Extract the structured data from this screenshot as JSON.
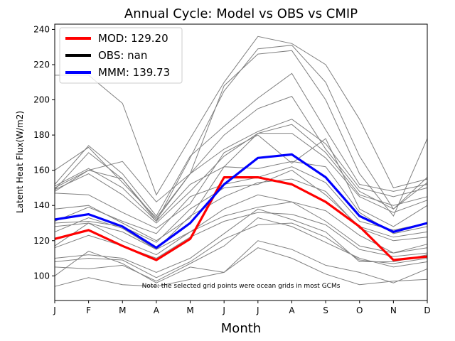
{
  "chart_data": {
    "type": "line",
    "title": "Annual Cycle: Model vs OBS vs CMIP",
    "xlabel": "Month",
    "ylabel": "Latent Heat Flux(W/m2)",
    "categories": [
      "J",
      "F",
      "M",
      "A",
      "M",
      "J",
      "J",
      "A",
      "S",
      "O",
      "N",
      "D"
    ],
    "ylim": [
      86,
      243
    ],
    "yticks": [
      100,
      120,
      140,
      160,
      180,
      200,
      220,
      240
    ],
    "annotation": "Note: the selected grid points were ocean grids in most GCMs",
    "legend": [
      {
        "label": "MOD: 129.20",
        "color": "#ff0000"
      },
      {
        "label": "OBS: nan",
        "color": "#000000"
      },
      {
        "label": "MMM: 139.73",
        "color": "#0000ff"
      }
    ],
    "series": [
      {
        "name": "MOD",
        "color": "#ff0000",
        "width": 3.2,
        "values": [
          121,
          126,
          117,
          109,
          121,
          156,
          156,
          152,
          142,
          128,
          109,
          111
        ]
      },
      {
        "name": "MMM",
        "color": "#0000ff",
        "width": 3.2,
        "values": [
          132,
          135,
          128,
          116,
          130,
          152,
          167,
          169,
          156,
          134,
          125,
          130
        ]
      }
    ],
    "cmip_models": {
      "color": "#808080",
      "values": [
        [
          214,
          214,
          198,
          146,
          178,
          210,
          236,
          232,
          220,
          189,
          150,
          155
        ],
        [
          149,
          170,
          155,
          131,
          167,
          205,
          229,
          231,
          210,
          168,
          138,
          156
        ],
        [
          150,
          160,
          165,
          142,
          158,
          208,
          226,
          228,
          200,
          158,
          134,
          178
        ],
        [
          152,
          174,
          158,
          134,
          168,
          185,
          201,
          215,
          183,
          152,
          148,
          152
        ],
        [
          160,
          173,
          153,
          133,
          158,
          180,
          195,
          202,
          172,
          148,
          138,
          153
        ],
        [
          148,
          160,
          155,
          132,
          158,
          172,
          182,
          189,
          175,
          150,
          145,
          150
        ],
        [
          149,
          158,
          146,
          130,
          148,
          168,
          181,
          186,
          170,
          146,
          140,
          145
        ],
        [
          151,
          161,
          150,
          131,
          152,
          162,
          181,
          181,
          167,
          145,
          136,
          143
        ],
        [
          147,
          146,
          136,
          127,
          141,
          170,
          180,
          164,
          178,
          138,
          128,
          140
        ],
        [
          138,
          140,
          130,
          120,
          133,
          162,
          161,
          165,
          162,
          136,
          124,
          128
        ],
        [
          131,
          139,
          131,
          124,
          145,
          152,
          156,
          162,
          153,
          131,
          126,
          130
        ],
        [
          130,
          131,
          128,
          119,
          138,
          150,
          152,
          160,
          146,
          128,
          122,
          125
        ],
        [
          128,
          130,
          125,
          115,
          134,
          145,
          153,
          155,
          148,
          127,
          120,
          122
        ],
        [
          125,
          133,
          127,
          115,
          125,
          138,
          146,
          142,
          137,
          123,
          113,
          118
        ],
        [
          117,
          130,
          120,
          112,
          125,
          134,
          139,
          142,
          131,
          117,
          113,
          116
        ],
        [
          116,
          123,
          117,
          110,
          122,
          131,
          136,
          135,
          129,
          115,
          111,
          113
        ],
        [
          110,
          112,
          110,
          102,
          110,
          124,
          138,
          132,
          125,
          108,
          108,
          112
        ],
        [
          108,
          110,
          109,
          99,
          108,
          121,
          129,
          130,
          122,
          109,
          107,
          110
        ],
        [
          105,
          104,
          106,
          97,
          107,
          117,
          133,
          128,
          119,
          110,
          105,
          108
        ],
        [
          100,
          114,
          107,
          96,
          105,
          102,
          120,
          115,
          106,
          102,
          96,
          104
        ],
        [
          94,
          99,
          95,
          94,
          98,
          102,
          116,
          110,
          101,
          95,
          97,
          98
        ]
      ]
    }
  }
}
